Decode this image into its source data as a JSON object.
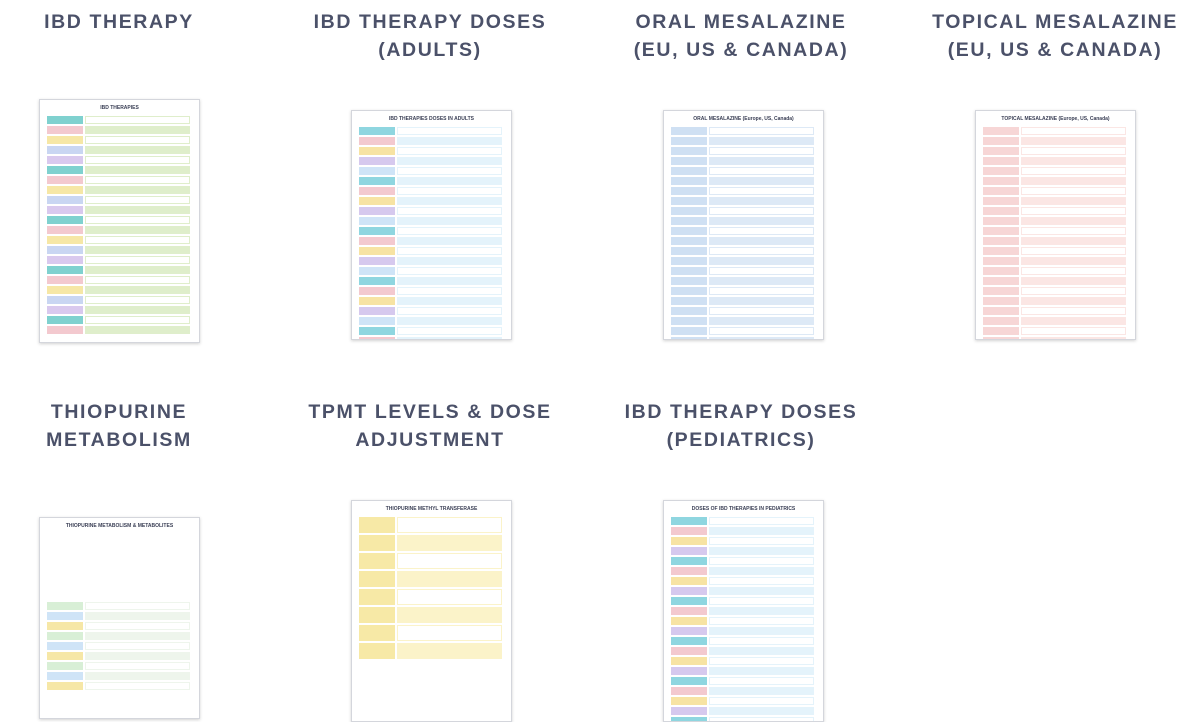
{
  "cards": [
    {
      "title_lines": [
        "IBD THERAPY"
      ],
      "thumb_heading": "IBD THERAPIES"
    },
    {
      "title_lines": [
        "IBD THERAPY DOSES",
        "(ADULTS)"
      ],
      "thumb_heading": "IBD THERAPIES DOSES IN ADULTS"
    },
    {
      "title_lines": [
        "ORAL MESALAZINE",
        "(EU, US & CANADA)"
      ],
      "thumb_heading": "ORAL MESALAZINE (Europe, US, Canada)"
    },
    {
      "title_lines": [
        "TOPICAL MESALAZINE",
        "(EU, US & CANADA)"
      ],
      "thumb_heading": "TOPICAL MESALAZINE (Europe, US, Canada)"
    },
    {
      "title_lines": [
        "THIOPURINE",
        "METABOLISM"
      ],
      "thumb_heading": "THIOPURINE METABOLISM & METABOLITES"
    },
    {
      "title_lines": [
        "TPMT LEVELS & DOSE",
        "ADJUSTMENT"
      ],
      "thumb_heading": "THIOPURINE METHYL TRANSFERASE"
    },
    {
      "title_lines": [
        "IBD THERAPY DOSES",
        "(PEDIATRICS)"
      ],
      "thumb_heading": "DOSES OF IBD THERAPIES IN PEDIATRICS"
    }
  ]
}
